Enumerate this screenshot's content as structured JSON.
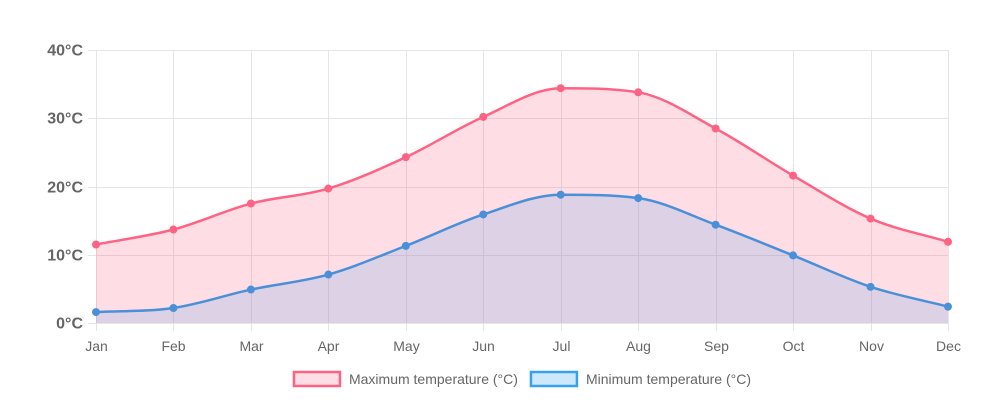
{
  "chart_data": {
    "type": "line",
    "title": "",
    "xlabel": "",
    "ylabel": "",
    "categories": [
      "Jan",
      "Feb",
      "Mar",
      "Apr",
      "May",
      "Jun",
      "Jul",
      "Aug",
      "Sep",
      "Oct",
      "Nov",
      "Dec"
    ],
    "ylim": [
      0,
      40
    ],
    "yticks": [
      0,
      10,
      20,
      30,
      40
    ],
    "ytick_labels": [
      "0°C",
      "10°C",
      "20°C",
      "30°C",
      "40°C"
    ],
    "grid": true,
    "filled": true,
    "smooth": true,
    "legend_position": "bottom",
    "series": [
      {
        "name": "Maximum temperature (°C)",
        "values": [
          11.5,
          13.7,
          17.5,
          19.7,
          24.3,
          30.2,
          34.4,
          33.8,
          28.5,
          21.6,
          15.3,
          11.9
        ],
        "line_color": "#ff6384",
        "fill_color": "rgba(255, 99, 132, 0.22)"
      },
      {
        "name": "Minimum temperature (°C)",
        "values": [
          1.6,
          2.2,
          4.9,
          7.1,
          11.3,
          15.9,
          18.8,
          18.3,
          14.4,
          9.9,
          5.3,
          2.4
        ],
        "line_color": "#4a90d9",
        "fill_color": "rgba(100, 170, 230, 0.22)"
      }
    ]
  }
}
